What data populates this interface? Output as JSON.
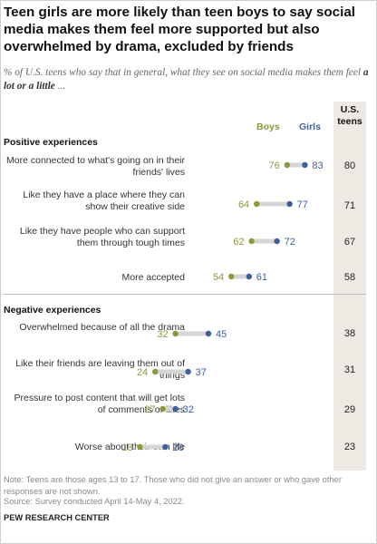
{
  "title": "Teen girls are more likely than teen boys to say social media makes them feel more supported but also overwhelmed by drama, excluded by friends",
  "subtitle_pre": "% of U.S. teens who say that in general, what they see on social media makes them feel ",
  "subtitle_bold": "a lot or a little",
  "subtitle_post": " ...",
  "colors": {
    "boys": "#8a9a3b",
    "girls": "#3e5e9c",
    "connector": "#d6d6d6",
    "us_column": "#ede9e3"
  },
  "chart_data": {
    "type": "dot",
    "columns": {
      "boys": "Boys",
      "girls": "Girls",
      "us": "U.S. teens"
    },
    "groups": [
      {
        "label": "Positive experiences",
        "rows": [
          {
            "label": "More connected to what's going on in their friends' lives",
            "boys": 76,
            "girls": 83,
            "us": 80
          },
          {
            "label": "Like they have a place where they can show their creative side",
            "boys": 64,
            "girls": 77,
            "us": 71
          },
          {
            "label": "Like they have people who can support them through tough times",
            "boys": 62,
            "girls": 72,
            "us": 67
          },
          {
            "label": "More accepted",
            "boys": 54,
            "girls": 61,
            "us": 58
          }
        ]
      },
      {
        "label": "Negative experiences",
        "rows": [
          {
            "label": "Overwhelmed because of all the drama",
            "boys": 32,
            "girls": 45,
            "us": 38
          },
          {
            "label": "Like their friends are leaving them out of things",
            "boys": 24,
            "girls": 37,
            "us": 31
          },
          {
            "label": "Pressure to post content that will get lots of comments or likes",
            "boys": 27,
            "girls": 32,
            "us": 29
          },
          {
            "label": "Worse about their own life",
            "boys": 18,
            "girls": 28,
            "us": 23
          }
        ]
      }
    ]
  },
  "note": "Note: Teens are those ages 13 to 17. Those who did not give an answer or who gave other responses are not shown.",
  "source": "Source: Survey conducted April 14-May 4, 2022.",
  "brand": "PEW RESEARCH CENTER"
}
